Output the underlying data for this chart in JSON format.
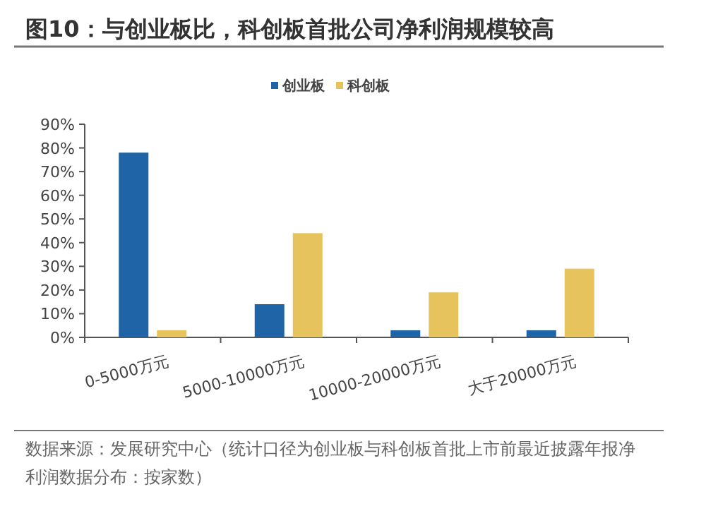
{
  "chart_data": {
    "type": "bar",
    "title": "图10：与创业板比，科创板首批公司净利润规模较高",
    "categories": [
      "0-5000万元",
      "5000-10000万元",
      "10000-20000万元",
      "大于20000万元"
    ],
    "series": [
      {
        "name": "创业板",
        "color": "#1f64a6",
        "values": [
          78,
          14,
          3,
          3
        ]
      },
      {
        "name": "科创板",
        "color": "#e6c35c",
        "values": [
          3,
          44,
          19,
          29
        ]
      }
    ],
    "ylim": [
      0,
      90
    ],
    "yticks": [
      {
        "value": 0,
        "label": "0%"
      },
      {
        "value": 10,
        "label": "10%"
      },
      {
        "value": 20,
        "label": "20%"
      },
      {
        "value": 30,
        "label": "30%"
      },
      {
        "value": 40,
        "label": "40%"
      },
      {
        "value": 50,
        "label": "50%"
      },
      {
        "value": 60,
        "label": "60%"
      },
      {
        "value": 70,
        "label": "70%"
      },
      {
        "value": 80,
        "label": "80%"
      },
      {
        "value": 90,
        "label": "90%"
      }
    ],
    "legend": "top",
    "grid": false,
    "annotations": [
      "数据来源：发展研究中心（统计口径为创业板与科创板首批上市前最近披露年报净利润数据分布：按家数）"
    ]
  }
}
